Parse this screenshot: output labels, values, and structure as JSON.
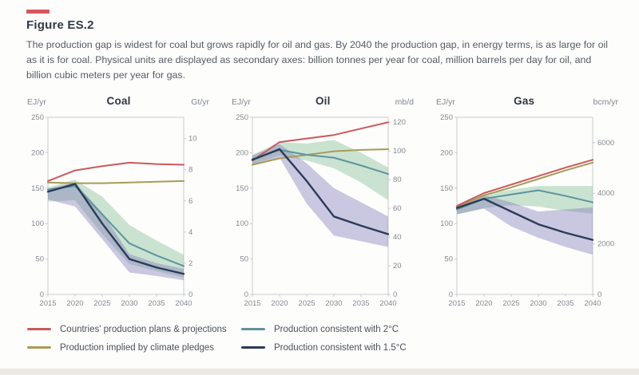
{
  "header": {
    "title": "Figure ES.2",
    "caption": "The production gap is widest for coal but grows rapidly for oil and gas. By 2040 the production gap, in energy terms, is as large for oil as it is for coal. Physical units are displayed as secondary axes: billion tonnes per year for coal, million barrels per day for oil, and billion cubic meters per year for gas."
  },
  "colors": {
    "accent_bar": "#d4575c",
    "plans": "#c9595b",
    "pledges": "#a99b57",
    "two_deg": "#5e939d",
    "one_five_deg": "#2b3b58",
    "band_2c": "rgba(139,196,157,0.45)",
    "band_15c": "rgba(125,118,183,0.40)",
    "axis": "#c9cbcd"
  },
  "legend": {
    "items": [
      {
        "label": "Countries' production plans & projections",
        "color_key": "plans"
      },
      {
        "label": "Production implied by climate pledges",
        "color_key": "pledges"
      },
      {
        "label": "Production consistent with 2°C",
        "color_key": "two_deg"
      },
      {
        "label": "Production consistent with 1.5°C",
        "color_key": "one_five_deg"
      }
    ]
  },
  "chart_data": [
    {
      "type": "line",
      "title": "Coal",
      "left_unit": "EJ/yr",
      "right_unit": "Gt/yr",
      "x": [
        2015,
        2020,
        2025,
        2030,
        2035,
        2040
      ],
      "left_axis": {
        "min": 0,
        "max": 250,
        "ticks": [
          0,
          50,
          100,
          150,
          200,
          250
        ]
      },
      "right_axis": {
        "ticks": [
          0,
          2,
          4,
          6,
          8,
          10
        ],
        "ej_per_unit": 22
      },
      "bands": [
        {
          "name": "2C uncertainty range",
          "color_key": "band_2c",
          "upper": [
            151,
            162,
            138,
            98,
            76,
            56
          ],
          "lower": [
            131,
            133,
            85,
            43,
            33,
            24
          ]
        },
        {
          "name": "1.5C uncertainty range",
          "color_key": "band_15c",
          "upper": [
            149,
            158,
            115,
            57,
            44,
            36
          ],
          "lower": [
            134,
            124,
            78,
            31,
            26,
            20
          ]
        }
      ],
      "series": [
        {
          "name": "Production implied by climate pledges",
          "color_key": "pledges",
          "values": [
            158,
            157,
            157,
            158,
            159,
            160
          ]
        },
        {
          "name": "Countries' production plans & projections",
          "color_key": "plans",
          "values": [
            160,
            175,
            181,
            186,
            184,
            183
          ]
        },
        {
          "name": "Production consistent with 2C",
          "color_key": "two_deg",
          "values": [
            148,
            153,
            113,
            72,
            55,
            40
          ]
        },
        {
          "name": "Production consistent with 1.5C",
          "color_key": "one_five_deg",
          "values": [
            145,
            156,
            100,
            50,
            38,
            29
          ]
        }
      ]
    },
    {
      "type": "line",
      "title": "Oil",
      "left_unit": "EJ/yr",
      "right_unit": "mb/d",
      "x": [
        2015,
        2020,
        2025,
        2030,
        2035,
        2040
      ],
      "left_axis": {
        "min": 0,
        "max": 250,
        "ticks": [
          0,
          50,
          100,
          150,
          200,
          250
        ]
      },
      "right_axis": {
        "ticks": [
          0,
          20,
          40,
          60,
          80,
          100,
          120
        ],
        "ej_per_unit": 2.025
      },
      "bands": [
        {
          "name": "2C uncertainty range",
          "color_key": "band_2c",
          "upper": [
            197,
            215,
            213,
            218,
            200,
            179
          ],
          "lower": [
            184,
            196,
            189,
            178,
            158,
            133
          ]
        },
        {
          "name": "1.5C uncertainty range",
          "color_key": "band_15c",
          "upper": [
            196,
            212,
            185,
            150,
            130,
            110
          ],
          "lower": [
            183,
            193,
            128,
            83,
            75,
            67
          ]
        }
      ],
      "series": [
        {
          "name": "Production implied by climate pledges",
          "color_key": "pledges",
          "values": [
            183,
            192,
            197,
            202,
            204,
            205
          ]
        },
        {
          "name": "Countries' production plans & projections",
          "color_key": "plans",
          "values": [
            189,
            215,
            220,
            225,
            234,
            243
          ]
        },
        {
          "name": "Production consistent with 2C",
          "color_key": "two_deg",
          "values": [
            191,
            204,
            197,
            193,
            182,
            170
          ]
        },
        {
          "name": "Production consistent with 1.5C",
          "color_key": "one_five_deg",
          "values": [
            190,
            205,
            160,
            110,
            97,
            85
          ]
        }
      ]
    },
    {
      "type": "line",
      "title": "Gas",
      "left_unit": "EJ/yr",
      "right_unit": "bcm/yr",
      "x": [
        2015,
        2020,
        2025,
        2030,
        2035,
        2040
      ],
      "left_axis": {
        "min": 0,
        "max": 250,
        "ticks": [
          0,
          50,
          100,
          150,
          200,
          250
        ]
      },
      "right_axis": {
        "ticks": [
          0,
          2000,
          4000,
          6000
        ],
        "ej_per_unit": 0.0357
      },
      "bands": [
        {
          "name": "2C uncertainty range",
          "color_key": "band_2c",
          "upper": [
            125,
            141,
            148,
            153,
            153,
            153
          ],
          "lower": [
            113,
            122,
            126,
            124,
            118,
            114
          ]
        },
        {
          "name": "1.5C uncertainty range",
          "color_key": "band_15c",
          "upper": [
            124,
            140,
            130,
            117,
            120,
            123
          ],
          "lower": [
            113,
            121,
            96,
            80,
            67,
            56
          ]
        }
      ],
      "series": [
        {
          "name": "Production implied by climate pledges",
          "color_key": "pledges",
          "values": [
            123,
            140,
            151,
            163,
            175,
            186
          ]
        },
        {
          "name": "Countries' production plans & projections",
          "color_key": "plans",
          "values": [
            125,
            143,
            155,
            167,
            179,
            190
          ]
        },
        {
          "name": "Production consistent with 2C",
          "color_key": "two_deg",
          "values": [
            120,
            135,
            141,
            147,
            139,
            130
          ]
        },
        {
          "name": "Production consistent with 1.5C",
          "color_key": "one_five_deg",
          "values": [
            122,
            135,
            117,
            99,
            87,
            77
          ]
        }
      ]
    }
  ]
}
